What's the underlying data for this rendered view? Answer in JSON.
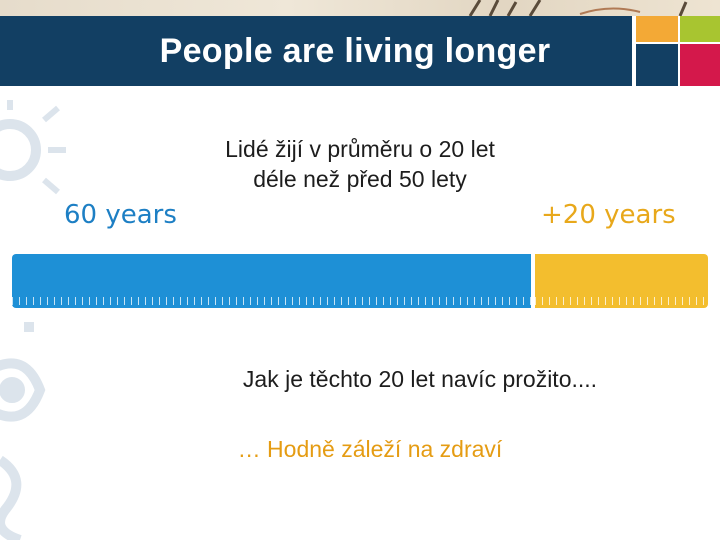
{
  "title": "People are living longer",
  "subtitle_lines": [
    "Lidé žijí v průměru o 20 let",
    "déle než před 50 lety"
  ],
  "bar": {
    "left_label": "60 years",
    "right_label": "+20 years",
    "segments": [
      {
        "label": "60 years",
        "value": 60,
        "color": "#1e90d6"
      },
      {
        "label": "+20 years",
        "value": 20,
        "color": "#f3be2e"
      }
    ]
  },
  "question": "Jak je těchto 20 let navíc prožito....",
  "answer": "… Hodně záleží na zdraví",
  "colors": {
    "header": "#123f63",
    "tile_orange": "#f3a936",
    "tile_green": "#a8c530",
    "tile_navy": "#123f63",
    "tile_red": "#d4184b",
    "blue": "#1e90d6",
    "gold": "#f3be2e"
  }
}
